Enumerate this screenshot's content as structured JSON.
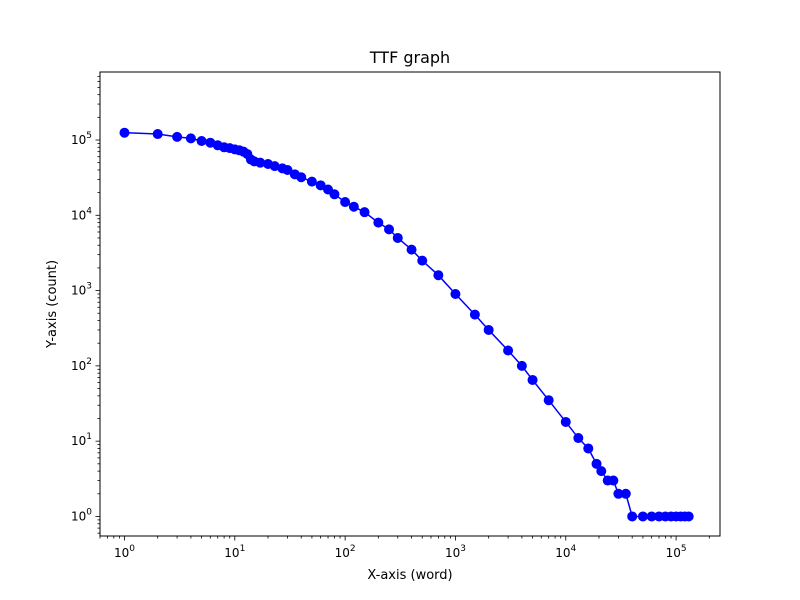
{
  "chart_data": {
    "type": "line",
    "title": "TTF graph",
    "xlabel": "X-axis (word)",
    "ylabel": "Y-axis (count)",
    "xscale": "log",
    "yscale": "log",
    "xlim": [
      0.6,
      250000
    ],
    "ylim": [
      0.55,
      800000
    ],
    "grid": false,
    "marker": "circle",
    "x_ticks": [
      {
        "base": "10",
        "exp": "0",
        "value": 1
      },
      {
        "base": "10",
        "exp": "1",
        "value": 10
      },
      {
        "base": "10",
        "exp": "2",
        "value": 100
      },
      {
        "base": "10",
        "exp": "3",
        "value": 1000
      },
      {
        "base": "10",
        "exp": "4",
        "value": 10000
      },
      {
        "base": "10",
        "exp": "5",
        "value": 100000
      }
    ],
    "y_ticks": [
      {
        "base": "10",
        "exp": "0",
        "value": 1
      },
      {
        "base": "10",
        "exp": "1",
        "value": 10
      },
      {
        "base": "10",
        "exp": "2",
        "value": 100
      },
      {
        "base": "10",
        "exp": "3",
        "value": 1000
      },
      {
        "base": "10",
        "exp": "4",
        "value": 10000
      },
      {
        "base": "10",
        "exp": "5",
        "value": 100000
      }
    ],
    "series": [
      {
        "color": "#0000ff",
        "x": [
          1,
          2,
          3,
          4,
          5,
          6,
          7,
          8,
          9,
          10,
          11,
          12,
          13,
          14,
          15,
          17,
          20,
          23,
          27,
          30,
          35,
          40,
          50,
          60,
          70,
          80,
          100,
          120,
          150,
          200,
          250,
          300,
          400,
          500,
          700,
          1000,
          1500,
          2000,
          3000,
          4000,
          5000,
          7000,
          10000,
          13000,
          16000,
          19000,
          21000,
          24000,
          27000,
          30000,
          35000,
          40000,
          50000,
          60000,
          70000,
          80000,
          90000,
          100000,
          110000,
          120000,
          130000
        ],
        "y": [
          125000,
          120000,
          110000,
          105000,
          97000,
          92000,
          85000,
          80000,
          78000,
          75000,
          73000,
          70000,
          65000,
          55000,
          52000,
          50000,
          48000,
          45000,
          42000,
          40000,
          35000,
          32000,
          28000,
          25000,
          22000,
          19000,
          15000,
          13000,
          11000,
          8000,
          6500,
          5000,
          3500,
          2500,
          1600,
          900,
          480,
          300,
          160,
          100,
          65,
          35,
          18,
          11,
          8,
          5,
          4,
          3,
          3,
          2,
          2,
          1,
          1,
          1,
          1,
          1,
          1,
          1,
          1,
          1,
          1
        ]
      }
    ]
  }
}
